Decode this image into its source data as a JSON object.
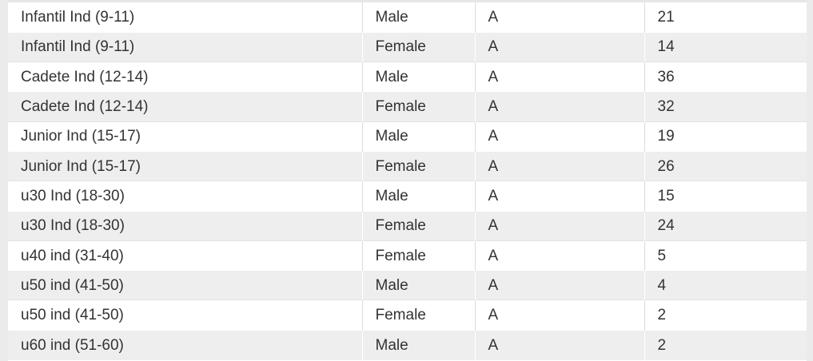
{
  "table": {
    "rows": [
      {
        "category": "Infantil Ind (9-11)",
        "gender": "Male",
        "group": "A",
        "count": "21"
      },
      {
        "category": "Infantil Ind (9-11)",
        "gender": "Female",
        "group": "A",
        "count": "14"
      },
      {
        "category": "Cadete Ind (12-14)",
        "gender": "Male",
        "group": "A",
        "count": "36"
      },
      {
        "category": "Cadete Ind (12-14)",
        "gender": "Female",
        "group": "A",
        "count": "32"
      },
      {
        "category": "Junior Ind (15-17)",
        "gender": "Male",
        "group": "A",
        "count": "19"
      },
      {
        "category": "Junior Ind (15-17)",
        "gender": "Female",
        "group": "A",
        "count": "26"
      },
      {
        "category": "u30 Ind (18-30)",
        "gender": "Male",
        "group": "A",
        "count": "15"
      },
      {
        "category": "u30 Ind (18-30)",
        "gender": "Female",
        "group": "A",
        "count": "24"
      },
      {
        "category": "u40 ind (31-40)",
        "gender": "Female",
        "group": "A",
        "count": "5"
      },
      {
        "category": "u50 ind (41-50)",
        "gender": "Male",
        "group": "A",
        "count": "4"
      },
      {
        "category": "u50 ind (41-50)",
        "gender": "Female",
        "group": "A",
        "count": "2"
      },
      {
        "category": "u60 ind (51-60)",
        "gender": "Male",
        "group": "A",
        "count": "2"
      }
    ]
  },
  "colors": {
    "row_alt": "#eeeeee",
    "row_base": "#ffffff",
    "text": "#333333"
  }
}
